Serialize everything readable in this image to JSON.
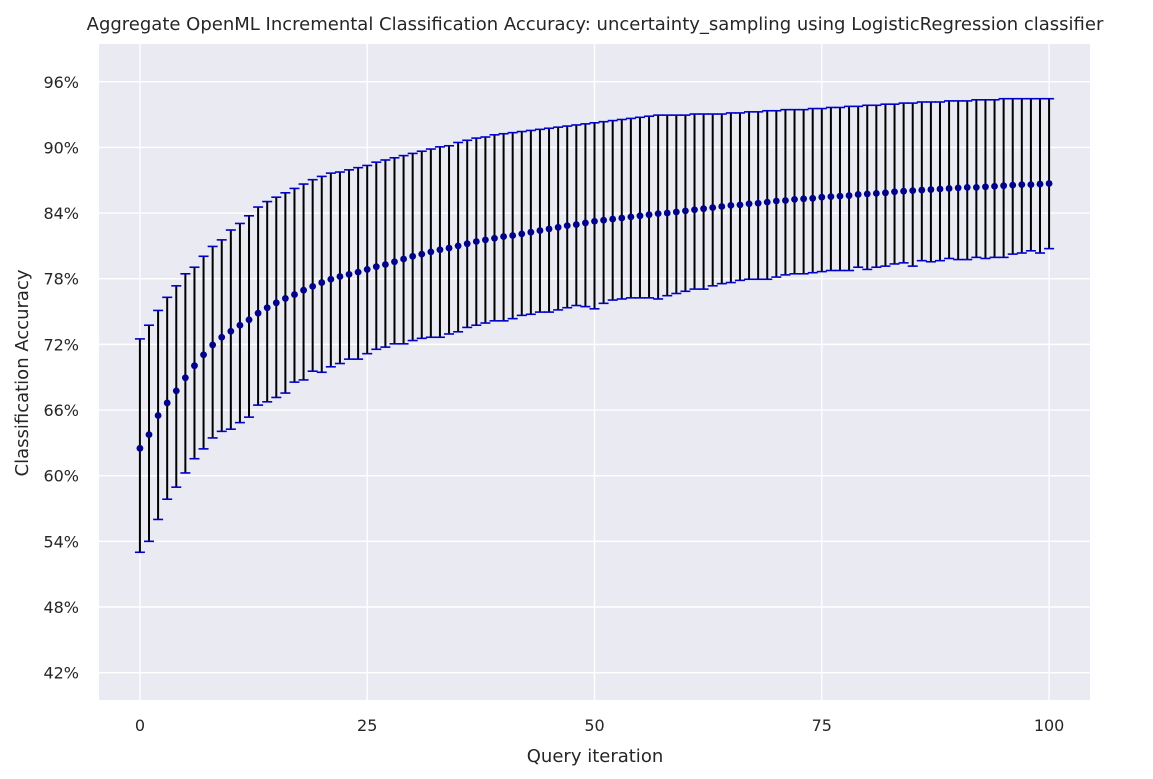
{
  "chart_data": {
    "type": "scatter",
    "title": "Aggregate OpenML Incremental Classification Accuracy: uncertainty_sampling using LogisticRegression classifier",
    "xlabel": "Query iteration",
    "ylabel": "Classification Accuracy",
    "xlim": [
      -4.5,
      104.5
    ],
    "ylim": [
      0.395,
      0.9945
    ],
    "xticks": [
      0,
      25,
      50,
      75,
      100
    ],
    "xtick_labels": [
      "0",
      "25",
      "50",
      "75",
      "100"
    ],
    "yticks": [
      0.42,
      0.48,
      0.54,
      0.6,
      0.66,
      0.72,
      0.78,
      0.84,
      0.9,
      0.96
    ],
    "ytick_labels": [
      "42%",
      "48%",
      "54%",
      "60%",
      "66%",
      "72%",
      "78%",
      "84%",
      "90%",
      "96%"
    ],
    "grid": true,
    "background": "#eaeaf2",
    "grid_color": "#ffffff",
    "point_color": "#00008b",
    "errorbar_color": "#000000",
    "cap_color": "#0000cd",
    "series": [
      {
        "x": [
          0,
          1,
          2,
          3,
          4,
          5,
          6,
          7,
          8,
          9,
          10,
          11,
          12,
          13,
          14,
          15,
          16,
          17,
          18,
          19,
          20,
          21,
          22,
          23,
          24,
          25,
          26,
          27,
          28,
          29,
          30,
          31,
          32,
          33,
          34,
          35,
          36,
          37,
          38,
          39,
          40,
          41,
          42,
          43,
          44,
          45,
          46,
          47,
          48,
          49,
          50,
          51,
          52,
          53,
          54,
          55,
          56,
          57,
          58,
          59,
          60,
          61,
          62,
          63,
          64,
          65,
          66,
          67,
          68,
          69,
          70,
          71,
          72,
          73,
          74,
          75,
          76,
          77,
          78,
          79,
          80,
          81,
          82,
          83,
          84,
          85,
          86,
          87,
          88,
          89,
          90,
          91,
          92,
          93,
          94,
          95,
          96,
          97,
          98,
          99,
          100
        ],
        "y": [
          0.625,
          0.6375,
          0.655,
          0.6665,
          0.6775,
          0.6895,
          0.7005,
          0.7105,
          0.7195,
          0.7265,
          0.732,
          0.7375,
          0.7425,
          0.7485,
          0.7535,
          0.758,
          0.762,
          0.7655,
          0.7695,
          0.773,
          0.7765,
          0.7795,
          0.782,
          0.784,
          0.786,
          0.7885,
          0.791,
          0.793,
          0.7955,
          0.798,
          0.8005,
          0.8025,
          0.8045,
          0.8065,
          0.808,
          0.81,
          0.812,
          0.814,
          0.8155,
          0.817,
          0.8185,
          0.8195,
          0.821,
          0.8225,
          0.824,
          0.8255,
          0.827,
          0.8285,
          0.8295,
          0.831,
          0.8325,
          0.8335,
          0.8345,
          0.8355,
          0.8365,
          0.8375,
          0.8385,
          0.8395,
          0.84,
          0.841,
          0.842,
          0.843,
          0.844,
          0.845,
          0.846,
          0.847,
          0.8475,
          0.8485,
          0.849,
          0.85,
          0.851,
          0.8515,
          0.8525,
          0.853,
          0.8535,
          0.8545,
          0.855,
          0.8555,
          0.856,
          0.857,
          0.8575,
          0.858,
          0.8585,
          0.8595,
          0.86,
          0.8605,
          0.861,
          0.8615,
          0.862,
          0.8625,
          0.863,
          0.8635,
          0.8635,
          0.864,
          0.8645,
          0.865,
          0.8655,
          0.866,
          0.866,
          0.8665,
          0.867
        ],
        "yerr_low": [
          0.53,
          0.54,
          0.56,
          0.5785,
          0.5895,
          0.6025,
          0.6155,
          0.6245,
          0.6345,
          0.6405,
          0.6425,
          0.6485,
          0.6535,
          0.6645,
          0.6675,
          0.6715,
          0.6755,
          0.6855,
          0.6875,
          0.6955,
          0.6945,
          0.6995,
          0.7025,
          0.7065,
          0.7065,
          0.7115,
          0.7155,
          0.7175,
          0.7205,
          0.7205,
          0.7235,
          0.7255,
          0.7265,
          0.7265,
          0.7295,
          0.7315,
          0.7355,
          0.7375,
          0.7395,
          0.7415,
          0.7415,
          0.7435,
          0.7465,
          0.7475,
          0.7495,
          0.7495,
          0.7515,
          0.7535,
          0.7555,
          0.7545,
          0.7525,
          0.7575,
          0.7605,
          0.7615,
          0.7625,
          0.7625,
          0.7625,
          0.7615,
          0.7645,
          0.7665,
          0.7685,
          0.7705,
          0.7705,
          0.7735,
          0.7755,
          0.7765,
          0.7785,
          0.7795,
          0.7795,
          0.7795,
          0.7815,
          0.7835,
          0.7845,
          0.7845,
          0.7855,
          0.7865,
          0.7875,
          0.7875,
          0.7875,
          0.7905,
          0.7885,
          0.7905,
          0.7915,
          0.7935,
          0.7945,
          0.7915,
          0.7965,
          0.7955,
          0.7965,
          0.7985,
          0.7975,
          0.7975,
          0.7995,
          0.7985,
          0.7995,
          0.7995,
          0.8025,
          0.8035,
          0.8055,
          0.8035,
          0.8075
        ],
        "yerr_high": [
          0.725,
          0.7375,
          0.751,
          0.763,
          0.7735,
          0.7845,
          0.7905,
          0.8005,
          0.8095,
          0.8155,
          0.8245,
          0.8305,
          0.8375,
          0.8455,
          0.8505,
          0.8545,
          0.8585,
          0.8625,
          0.8665,
          0.8705,
          0.8735,
          0.8765,
          0.8775,
          0.8795,
          0.8815,
          0.8835,
          0.8865,
          0.8885,
          0.8905,
          0.8925,
          0.8945,
          0.8965,
          0.8985,
          0.9005,
          0.9015,
          0.9045,
          0.9065,
          0.9085,
          0.9095,
          0.9115,
          0.9125,
          0.9135,
          0.9145,
          0.9155,
          0.9165,
          0.9175,
          0.9185,
          0.9195,
          0.9205,
          0.9215,
          0.9225,
          0.9235,
          0.9245,
          0.9255,
          0.9265,
          0.9275,
          0.9285,
          0.9295,
          0.9295,
          0.9295,
          0.9295,
          0.9305,
          0.9305,
          0.9305,
          0.9305,
          0.9315,
          0.9315,
          0.9325,
          0.9325,
          0.9335,
          0.9335,
          0.9345,
          0.9345,
          0.9345,
          0.9355,
          0.9355,
          0.9365,
          0.9365,
          0.9375,
          0.9375,
          0.9385,
          0.9385,
          0.9395,
          0.9395,
          0.9405,
          0.9405,
          0.9415,
          0.9415,
          0.9415,
          0.9425,
          0.9425,
          0.9425,
          0.9435,
          0.9435,
          0.9435,
          0.9445,
          0.9445,
          0.9445,
          0.9445,
          0.9445,
          0.9445
        ]
      }
    ]
  }
}
